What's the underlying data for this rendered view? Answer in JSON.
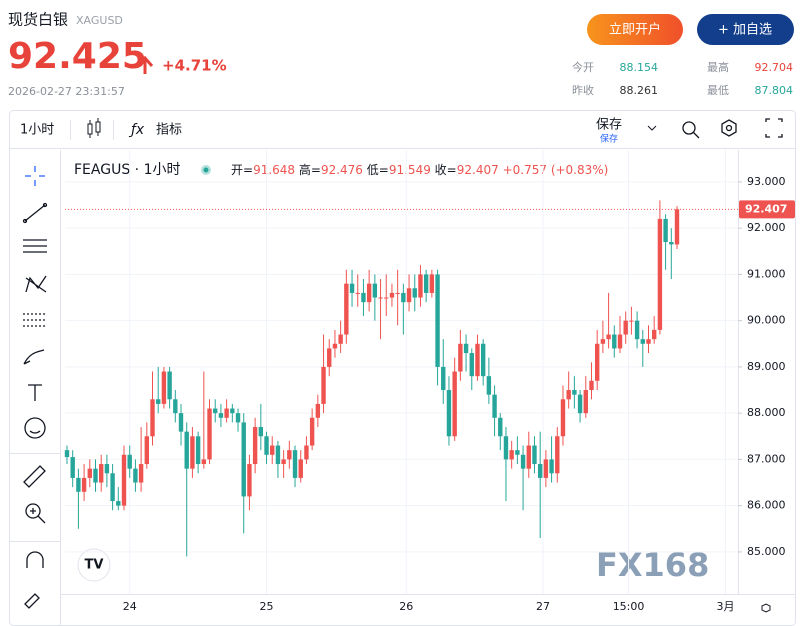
{
  "header": {
    "name": "现货白银",
    "symbol": "XAGUSD",
    "price": "92.425",
    "change": "+4.71%",
    "timestamp": "2026-02-27 23:31:57",
    "buttons": [
      "立即开户",
      "+ 加自选"
    ],
    "stats": [
      {
        "label": "今开",
        "value": "88.154"
      },
      {
        "label": "最高",
        "value": "92.704"
      },
      {
        "label": "昨收",
        "value": "88.261"
      },
      {
        "label": "最低",
        "value": "87.804"
      }
    ]
  },
  "toolbar": {
    "interval": "1小时",
    "indicators": "指标",
    "save": "保存",
    "save_sub": "保存"
  },
  "chart_data": {
    "type": "candlestick",
    "symbol": "FEAGUS · 1小时",
    "legend": {
      "open_label": "开=",
      "high_label": "高=",
      "low_label": "低=",
      "close_label": "收=",
      "change": "+0.757",
      "change_pct": "(+0.83%)"
    },
    "open": [
      87.2,
      87.05,
      86.6,
      86.3,
      86.6,
      86.8,
      86.5,
      86.9,
      86.7,
      86.1,
      86.0,
      87.1,
      86.8,
      86.5,
      86.9,
      87.5,
      88.3,
      88.2,
      88.9,
      88.3,
      88.0,
      87.6,
      86.8,
      87.5,
      86.9,
      87.0,
      88.1,
      88.0,
      87.9,
      88.1,
      88.0,
      87.8,
      86.2,
      86.9,
      87.7,
      87.5,
      87.1,
      87.3,
      86.9,
      87.0,
      87.2,
      86.6,
      87.0,
      87.3,
      87.9,
      88.2,
      89.0,
      89.4,
      89.5,
      89.7,
      90.8,
      90.6,
      90.6,
      90.4,
      90.8,
      90.5,
      90.5,
      90.5,
      90.6,
      90.6,
      90.4,
      90.7,
      90.5,
      91.0,
      90.6,
      91.0,
      89.0,
      88.5,
      87.5,
      88.9,
      89.5,
      89.3,
      88.8,
      89.5,
      88.8,
      88.4,
      87.9,
      87.5,
      87.0,
      87.2,
      87.1,
      86.8,
      87.3,
      86.9,
      86.6,
      87.0,
      86.7,
      87.5,
      88.3,
      88.5,
      88.4,
      88.0,
      88.5,
      88.7,
      89.5,
      89.6,
      89.7,
      89.4,
      89.7,
      90.0,
      90.0,
      89.6,
      89.5,
      89.6,
      89.8,
      92.2,
      91.7,
      91.648
    ],
    "high": [
      87.3,
      87.2,
      86.8,
      86.9,
      87.0,
      87.0,
      87.1,
      87.1,
      86.9,
      86.4,
      87.3,
      87.3,
      87.0,
      87.7,
      87.8,
      88.9,
      89.0,
      89.0,
      89.0,
      88.5,
      88.2,
      87.8,
      87.7,
      87.6,
      88.9,
      88.3,
      88.3,
      88.2,
      88.3,
      88.2,
      88.1,
      88.0,
      87.1,
      87.9,
      88.2,
      87.6,
      87.5,
      87.4,
      87.2,
      87.4,
      87.3,
      87.2,
      87.5,
      88.1,
      88.4,
      89.7,
      89.6,
      89.8,
      90.0,
      91.1,
      91.1,
      91.0,
      90.9,
      91.1,
      91.0,
      90.9,
      91.0,
      90.8,
      91.1,
      90.8,
      91.0,
      91.0,
      91.2,
      91.1,
      91.1,
      91.1,
      89.6,
      88.8,
      89.2,
      89.8,
      89.7,
      89.4,
      89.7,
      89.6,
      89.2,
      88.6,
      88.0,
      87.7,
      87.4,
      87.5,
      87.3,
      87.6,
      87.5,
      87.6,
      87.2,
      87.5,
      87.7,
      88.6,
      88.9,
      88.8,
      88.5,
      88.8,
      89.1,
      89.8,
      90.0,
      90.6,
      89.9,
      90.1,
      90.2,
      90.3,
      90.2,
      89.8,
      89.9,
      90.1,
      92.6,
      92.3,
      92.0,
      92.476
    ],
    "low": [
      86.9,
      86.4,
      85.5,
      86.1,
      86.4,
      86.3,
      86.3,
      86.4,
      85.9,
      85.9,
      85.9,
      86.6,
      86.3,
      86.3,
      86.8,
      87.3,
      88.0,
      88.1,
      88.1,
      87.8,
      87.3,
      84.9,
      86.6,
      86.7,
      86.8,
      86.9,
      87.8,
      87.7,
      87.8,
      87.8,
      87.6,
      85.4,
      85.9,
      86.7,
      87.2,
      86.9,
      86.9,
      86.6,
      86.6,
      86.8,
      86.4,
      86.5,
      86.9,
      87.2,
      87.7,
      88.0,
      88.8,
      89.2,
      89.3,
      89.5,
      90.3,
      90.3,
      90.1,
      90.2,
      90.0,
      89.6,
      90.1,
      90.3,
      89.9,
      89.7,
      90.2,
      90.2,
      90.3,
      90.4,
      90.5,
      88.6,
      88.2,
      87.3,
      87.4,
      88.7,
      88.9,
      88.5,
      88.7,
      88.6,
      88.2,
      87.5,
      87.2,
      86.1,
      86.8,
      86.9,
      85.9,
      86.6,
      86.7,
      85.3,
      86.4,
      86.5,
      86.5,
      87.3,
      88.1,
      88.1,
      87.8,
      87.9,
      88.3,
      88.5,
      89.3,
      89.4,
      89.2,
      89.3,
      89.5,
      89.7,
      89.4,
      89.0,
      89.3,
      89.5,
      89.7,
      91.1,
      90.9,
      91.549
    ],
    "close": [
      87.05,
      86.6,
      86.3,
      86.6,
      86.8,
      86.5,
      86.9,
      86.7,
      86.1,
      86.0,
      87.1,
      86.8,
      86.5,
      86.9,
      87.5,
      88.3,
      88.2,
      88.9,
      88.3,
      88.0,
      87.6,
      86.8,
      87.5,
      86.9,
      87.0,
      88.1,
      88.0,
      87.9,
      88.1,
      88.0,
      87.8,
      86.2,
      86.9,
      87.7,
      87.5,
      87.1,
      87.3,
      86.9,
      87.0,
      87.2,
      86.6,
      87.0,
      87.3,
      87.9,
      88.2,
      89.0,
      89.4,
      89.5,
      89.7,
      90.8,
      90.6,
      90.6,
      90.4,
      90.8,
      90.5,
      90.5,
      90.5,
      90.6,
      90.6,
      90.4,
      90.7,
      90.5,
      91.0,
      90.6,
      91.0,
      89.0,
      88.5,
      87.5,
      88.9,
      89.5,
      89.3,
      88.8,
      89.5,
      88.8,
      88.4,
      87.9,
      87.5,
      87.0,
      87.2,
      87.1,
      86.8,
      87.3,
      86.9,
      86.6,
      87.0,
      86.7,
      87.5,
      88.3,
      88.5,
      88.4,
      88.0,
      88.5,
      88.7,
      89.5,
      89.6,
      89.7,
      89.4,
      89.7,
      90.0,
      90.0,
      89.6,
      89.5,
      89.6,
      89.8,
      92.2,
      91.7,
      91.648,
      92.407
    ],
    "up_color": "#ef5350",
    "down_color": "#26a69a",
    "xlim": [
      -0.35,
      117.7
    ],
    "xticks": [
      {
        "value": 11,
        "label": "24"
      },
      {
        "value": 35,
        "label": "25"
      },
      {
        "value": 59.5,
        "label": "26"
      },
      {
        "value": 83.5,
        "label": "27"
      },
      {
        "value": 98.5,
        "label": "15:00"
      },
      {
        "value": 115.5,
        "label": "3月"
      }
    ],
    "ylim": [
      84.09,
      93.69
    ],
    "yticks": [
      {
        "value": 85,
        "label": "85.000"
      },
      {
        "value": 86,
        "label": "86.000"
      },
      {
        "value": 87,
        "label": "87.000"
      },
      {
        "value": 88,
        "label": "88.000"
      },
      {
        "value": 89,
        "label": "89.000"
      },
      {
        "value": 90,
        "label": "90.000"
      },
      {
        "value": 91,
        "label": "91.000"
      },
      {
        "value": 92,
        "label": "92.000"
      },
      {
        "value": 93,
        "label": "93.000"
      }
    ],
    "grid": true
  },
  "watermark": "FX168"
}
